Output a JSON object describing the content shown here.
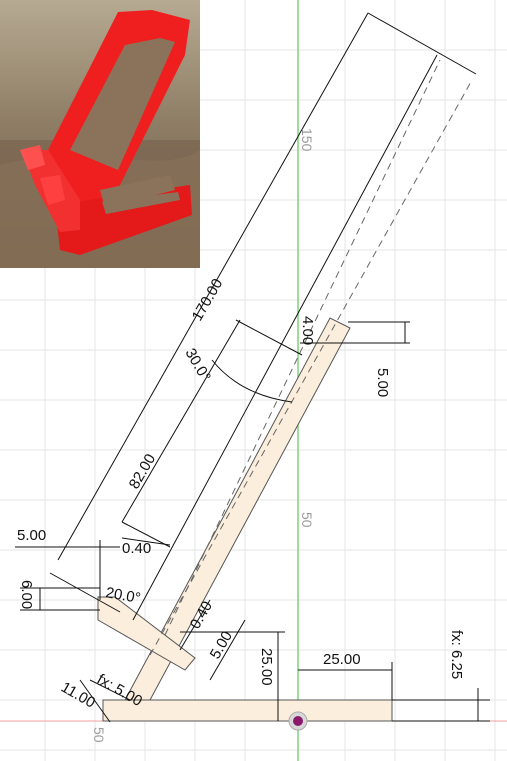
{
  "sketch": {
    "colors": {
      "background": "#ffffff",
      "grid": "#e6e6e6",
      "axis_vertical": "#7ed27e",
      "axis_horizontal": "#f0a0a0",
      "part_fill": "#fbeedd",
      "origin": "#8b1a6b",
      "photo_part": "#ef1f1f",
      "photo_background": "#7d6a55"
    },
    "dimensions": {
      "length_170": "170.00",
      "length_82": "82.00",
      "angle_30": "30.0°",
      "d_5_left": "5.00",
      "d_6": "6.00",
      "d_040_top": "0.40",
      "d_040_mid": "0.40",
      "d_5_mid": "5.00",
      "d_25_vert": "25.00",
      "d_25_horiz": "25.00",
      "d_5_right": "5.00",
      "d_11": "11.00",
      "d_fx5": "fx: 5.00",
      "d_fx625": "fx: 6.25",
      "d_400": "4.00",
      "d_20deg": "20.0°"
    },
    "axis_labels": {
      "y150": "150",
      "y50": "50",
      "x50": "50"
    }
  }
}
